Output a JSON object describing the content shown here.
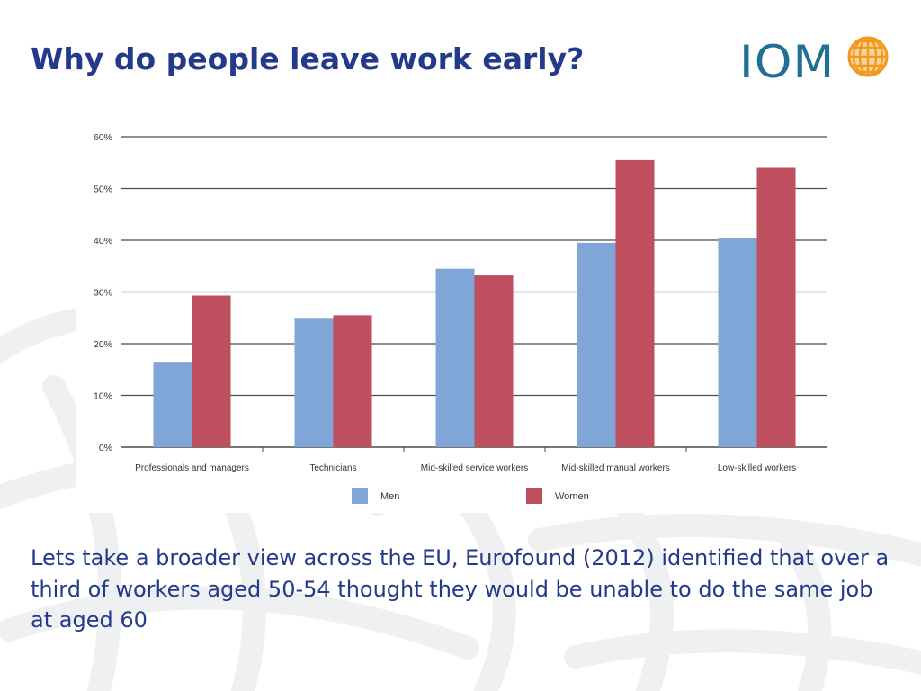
{
  "slide": {
    "title": "Why do people leave work early?",
    "logo_text": "IOM",
    "body_text": "Lets take a broader view across the EU, Eurofound (2012) identified that over a third of workers aged 50-54 thought they would be unable to do the same job at aged 60"
  },
  "colors": {
    "title": "#233a8b",
    "logo": "#1f6f97",
    "globe": "#f29a1c",
    "men": "#7fa6d6",
    "women": "#bd4f5e",
    "gridline": "#4a4a4a"
  },
  "chart_data": {
    "type": "bar",
    "categories": [
      "Professionals and managers",
      "Technicians",
      "Mid-skilled service workers",
      "Mid-skilled manual workers",
      "Low-skilled workers"
    ],
    "series": [
      {
        "name": "Men",
        "values": [
          16.5,
          25,
          34.5,
          39.5,
          40.5
        ]
      },
      {
        "name": "Women",
        "values": [
          29.3,
          25.5,
          33.2,
          55.5,
          54
        ]
      }
    ],
    "y_ticks": [
      "0%",
      "10%",
      "20%",
      "30%",
      "40%",
      "50%",
      "60%"
    ],
    "ylim": [
      0,
      60
    ],
    "grid": true,
    "legend_position": "bottom"
  }
}
